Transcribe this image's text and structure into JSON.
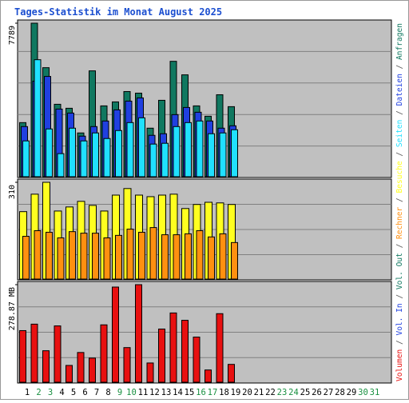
{
  "chart_data": {
    "type": "bar",
    "title": "Tages-Statistik im Monat August 2025",
    "categories": [
      "1",
      "2",
      "3",
      "4",
      "5",
      "6",
      "7",
      "8",
      "9",
      "10",
      "11",
      "12",
      "13",
      "14",
      "15",
      "16",
      "17",
      "18",
      "19",
      "20",
      "21",
      "22",
      "23",
      "24",
      "25",
      "26",
      "27",
      "28",
      "29",
      "30",
      "31"
    ],
    "weekend_days": [
      2,
      3,
      9,
      10,
      16,
      17,
      23,
      24,
      30,
      31
    ],
    "weekend_color": "#189040",
    "legend_separator": " / ",
    "panels": [
      {
        "ylim": [
          0,
          7789
        ],
        "yticks": [
          7789
        ],
        "series": [
          {
            "name": "Anfragen",
            "color": "#107860",
            "values": [
              2745,
              7789,
              5532,
              3675,
              3473,
              2221,
              5371,
              3594,
              3796,
              4321,
              4240,
              2463,
              3877,
              5855,
              5169,
              3594,
              3069,
              4159,
              3554,
              null,
              null,
              null,
              null,
              null,
              null,
              null,
              null,
              null,
              null,
              null,
              null
            ]
          },
          {
            "name": "Dateien",
            "color": "#2040e0",
            "values": [
              2544,
              4845,
              5088,
              3432,
              3230,
              2059,
              2544,
              2827,
              3392,
              3836,
              3998,
              2100,
              2181,
              3150,
              3513,
              3271,
              2827,
              2463,
              2584,
              null,
              null,
              null,
              null,
              null,
              null,
              null,
              null,
              null,
              null,
              null,
              null
            ]
          },
          {
            "name": "Seiten",
            "color": "#20e0ff",
            "values": [
              1817,
              5936,
              2423,
              1171,
              2463,
              1817,
              2221,
              1938,
              2342,
              2746,
              2988,
              1656,
              1696,
              2544,
              2746,
              2827,
              2181,
              2221,
              2383,
              null,
              null,
              null,
              null,
              null,
              null,
              null,
              null,
              null,
              null,
              null,
              null
            ]
          }
        ]
      },
      {
        "ylim": [
          0,
          310
        ],
        "yticks": [
          310
        ],
        "series": [
          {
            "name": "Besuche",
            "color": "#ffff20",
            "values": [
              216,
              272,
              310,
              218,
              231,
              249,
              236,
              218,
              269,
              290,
              269,
              264,
              269,
              272,
              226,
              239,
              246,
              244,
              239,
              null,
              null,
              null,
              null,
              null,
              null,
              null,
              null,
              null,
              null,
              null,
              null
            ]
          },
          {
            "name": "Rechner",
            "color": "#ff9010",
            "values": [
              137,
              155,
              150,
              132,
              152,
              147,
              147,
              132,
              140,
              160,
              150,
              165,
              142,
              142,
              145,
              155,
              135,
              145,
              117,
              null,
              null,
              null,
              null,
              null,
              null,
              null,
              null,
              null,
              null,
              null,
              null
            ]
          }
        ]
      },
      {
        "ylim": [
          0,
          278.87
        ],
        "yticks": [
          {
            "value": 278.87,
            "label": "278.87 MB"
          }
        ],
        "series": [
          {
            "name": "Volumen",
            "color": "#e81010",
            "values": [
              147.5,
              166,
              90,
              161,
              48,
              85,
              69,
              164,
              272,
              99,
              278.87,
              55,
              152,
              198,
              177,
              129,
              35,
              196,
              51,
              null,
              null,
              null,
              null,
              null,
              null,
              null,
              null,
              null,
              null,
              null,
              null
            ]
          }
        ],
        "legend_only": [
          {
            "name": "Vol. In",
            "color": "#2040e0"
          },
          {
            "name": "Vol. Out",
            "color": "#107860"
          }
        ]
      }
    ]
  }
}
